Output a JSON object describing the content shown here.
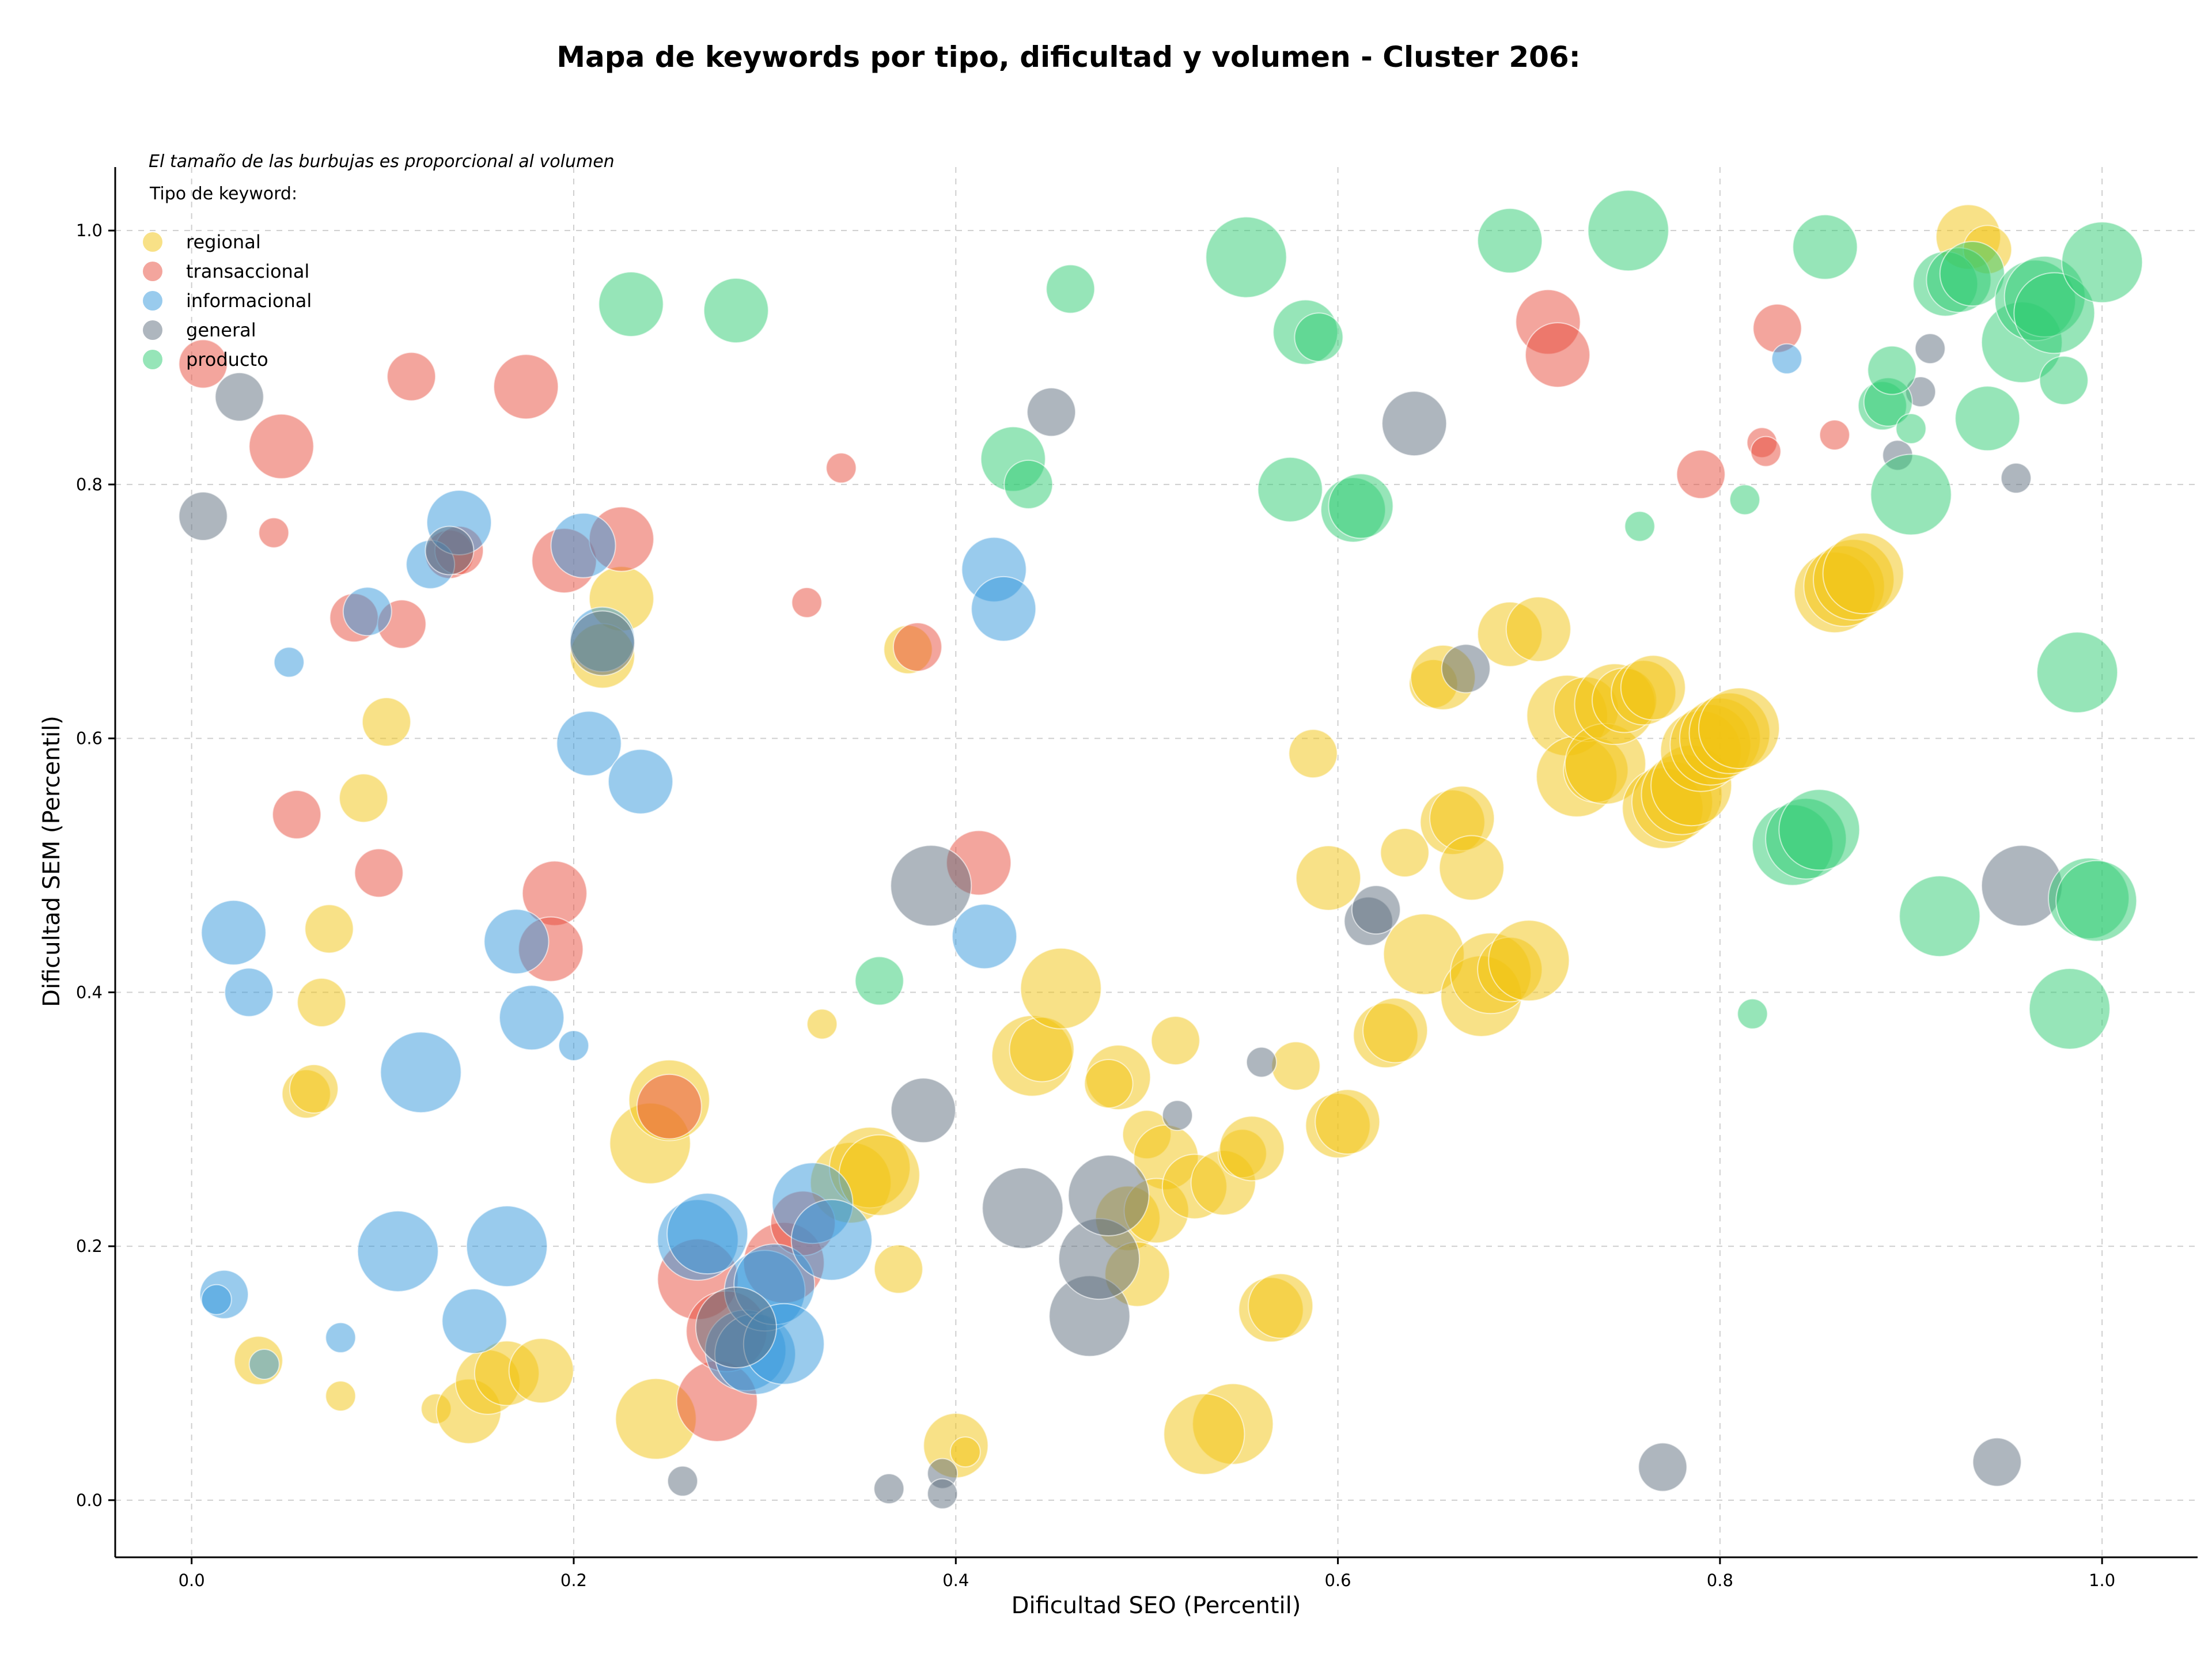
{
  "chart_data": {
    "type": "scatter",
    "title": "Mapa de keywords por tipo, dificultad y volumen - Cluster 206:",
    "xlabel": "Dificultad SEO (Percentil)",
    "ylabel": "Dificultad SEM (Percentil)",
    "xlim": [
      -0.04,
      1.05
    ],
    "ylim": [
      -0.045,
      1.05
    ],
    "xticks": [
      "0.0",
      "0.2",
      "0.4",
      "0.6",
      "0.8",
      "1.0"
    ],
    "yticks": [
      "0.0",
      "0.2",
      "0.4",
      "0.6",
      "0.8",
      "1.0"
    ],
    "grid": true,
    "annotation": "El tamaño de las burbujas es proporcional al volumen",
    "legend_title": "Tipo de keyword:",
    "legend_position": "top-left",
    "point_format": "[x, y, size]",
    "series": [
      {
        "name": "regional",
        "color": "#f1c40f",
        "points": [
          [
            0.93,
            0.995,
            3
          ],
          [
            0.94,
            0.985,
            2
          ],
          [
            0.225,
            0.71,
            3
          ],
          [
            0.215,
            0.665,
            3
          ],
          [
            0.102,
            0.613,
            2
          ],
          [
            0.09,
            0.553,
            2
          ],
          [
            0.072,
            0.45,
            2
          ],
          [
            0.068,
            0.392,
            2
          ],
          [
            0.06,
            0.32,
            2
          ],
          [
            0.064,
            0.324,
            2
          ],
          [
            0.035,
            0.11,
            2
          ],
          [
            0.078,
            0.082,
            1
          ],
          [
            0.128,
            0.072,
            1
          ],
          [
            0.145,
            0.07,
            3
          ],
          [
            0.155,
            0.093,
            3
          ],
          [
            0.165,
            0.1,
            3
          ],
          [
            0.183,
            0.102,
            3
          ],
          [
            0.24,
            0.281,
            4
          ],
          [
            0.25,
            0.315,
            4
          ],
          [
            0.243,
            0.064,
            4
          ],
          [
            0.33,
            0.375,
            1
          ],
          [
            0.37,
            0.182,
            2
          ],
          [
            0.375,
            0.67,
            2
          ],
          [
            0.345,
            0.25,
            4
          ],
          [
            0.355,
            0.262,
            4
          ],
          [
            0.36,
            0.256,
            4
          ],
          [
            0.4,
            0.043,
            3
          ],
          [
            0.405,
            0.038,
            1
          ],
          [
            0.44,
            0.35,
            4
          ],
          [
            0.445,
            0.355,
            3
          ],
          [
            0.455,
            0.403,
            4
          ],
          [
            0.485,
            0.333,
            3
          ],
          [
            0.48,
            0.328,
            2
          ],
          [
            0.49,
            0.222,
            3
          ],
          [
            0.495,
            0.178,
            3
          ],
          [
            0.5,
            0.288,
            2
          ],
          [
            0.51,
            0.27,
            3
          ],
          [
            0.505,
            0.228,
            3
          ],
          [
            0.515,
            0.362,
            2
          ],
          [
            0.525,
            0.247,
            3
          ],
          [
            0.54,
            0.25,
            3
          ],
          [
            0.545,
            0.06,
            4
          ],
          [
            0.53,
            0.052,
            4
          ],
          [
            0.55,
            0.273,
            2
          ],
          [
            0.555,
            0.277,
            3
          ],
          [
            0.565,
            0.15,
            3
          ],
          [
            0.57,
            0.153,
            3
          ],
          [
            0.578,
            0.342,
            2
          ],
          [
            0.587,
            0.588,
            2
          ],
          [
            0.595,
            0.49,
            3
          ],
          [
            0.6,
            0.295,
            3
          ],
          [
            0.605,
            0.298,
            3
          ],
          [
            0.625,
            0.366,
            3
          ],
          [
            0.63,
            0.37,
            3
          ],
          [
            0.635,
            0.51,
            2
          ],
          [
            0.645,
            0.43,
            4
          ],
          [
            0.65,
            0.643,
            2
          ],
          [
            0.655,
            0.648,
            3
          ],
          [
            0.66,
            0.534,
            3
          ],
          [
            0.665,
            0.537,
            3
          ],
          [
            0.67,
            0.498,
            3
          ],
          [
            0.675,
            0.397,
            4
          ],
          [
            0.68,
            0.415,
            4
          ],
          [
            0.69,
            0.418,
            3
          ],
          [
            0.69,
            0.682,
            3
          ],
          [
            0.7,
            0.425,
            4
          ],
          [
            0.705,
            0.686,
            3
          ],
          [
            0.72,
            0.618,
            4
          ],
          [
            0.725,
            0.57,
            4
          ],
          [
            0.73,
            0.623,
            3
          ],
          [
            0.735,
            0.575,
            3
          ],
          [
            0.74,
            0.58,
            4
          ],
          [
            0.745,
            0.627,
            4
          ],
          [
            0.75,
            0.63,
            3
          ],
          [
            0.76,
            0.636,
            3
          ],
          [
            0.765,
            0.64,
            3
          ],
          [
            0.77,
            0.545,
            4
          ],
          [
            0.775,
            0.55,
            4
          ],
          [
            0.78,
            0.556,
            4
          ],
          [
            0.785,
            0.563,
            4
          ],
          [
            0.79,
            0.59,
            4
          ],
          [
            0.795,
            0.595,
            4
          ],
          [
            0.8,
            0.6,
            4
          ],
          [
            0.805,
            0.604,
            4
          ],
          [
            0.81,
            0.608,
            4
          ],
          [
            0.86,
            0.715,
            4
          ],
          [
            0.865,
            0.72,
            4
          ],
          [
            0.87,
            0.725,
            4
          ],
          [
            0.875,
            0.73,
            4
          ]
        ]
      },
      {
        "name": "transaccional",
        "color": "#e74c3c",
        "points": [
          [
            0.006,
            0.895,
            2
          ],
          [
            0.047,
            0.83,
            3
          ],
          [
            0.043,
            0.762,
            1
          ],
          [
            0.085,
            0.695,
            2
          ],
          [
            0.11,
            0.69,
            2
          ],
          [
            0.115,
            0.885,
            2
          ],
          [
            0.135,
            0.745,
            2
          ],
          [
            0.14,
            0.748,
            2
          ],
          [
            0.175,
            0.877,
            3
          ],
          [
            0.195,
            0.74,
            3
          ],
          [
            0.225,
            0.757,
            3
          ],
          [
            0.055,
            0.54,
            2
          ],
          [
            0.098,
            0.494,
            2
          ],
          [
            0.19,
            0.478,
            3
          ],
          [
            0.188,
            0.434,
            3
          ],
          [
            0.25,
            0.31,
            3
          ],
          [
            0.265,
            0.174,
            4
          ],
          [
            0.275,
            0.078,
            4
          ],
          [
            0.28,
            0.133,
            4
          ],
          [
            0.31,
            0.187,
            4
          ],
          [
            0.32,
            0.218,
            3
          ],
          [
            0.322,
            0.707,
            1
          ],
          [
            0.34,
            0.813,
            1
          ],
          [
            0.38,
            0.672,
            2
          ],
          [
            0.412,
            0.502,
            3
          ],
          [
            0.71,
            0.928,
            3
          ],
          [
            0.715,
            0.902,
            3
          ],
          [
            0.79,
            0.808,
            2
          ],
          [
            0.822,
            0.833,
            1
          ],
          [
            0.824,
            0.826,
            1
          ],
          [
            0.83,
            0.923,
            2
          ],
          [
            0.86,
            0.839,
            1
          ]
        ]
      },
      {
        "name": "informacional",
        "color": "#3498db",
        "points": [
          [
            0.051,
            0.66,
            1
          ],
          [
            0.092,
            0.7,
            2
          ],
          [
            0.022,
            0.447,
            3
          ],
          [
            0.03,
            0.4,
            2
          ],
          [
            0.017,
            0.162,
            2
          ],
          [
            0.013,
            0.158,
            1
          ],
          [
            0.038,
            0.107,
            1
          ],
          [
            0.078,
            0.128,
            1
          ],
          [
            0.108,
            0.196,
            4
          ],
          [
            0.12,
            0.337,
            4
          ],
          [
            0.125,
            0.737,
            2
          ],
          [
            0.14,
            0.77,
            3
          ],
          [
            0.148,
            0.141,
            3
          ],
          [
            0.165,
            0.2,
            4
          ],
          [
            0.17,
            0.44,
            3
          ],
          [
            0.178,
            0.38,
            3
          ],
          [
            0.2,
            0.358,
            1
          ],
          [
            0.205,
            0.752,
            3
          ],
          [
            0.208,
            0.596,
            3
          ],
          [
            0.215,
            0.678,
            3
          ],
          [
            0.235,
            0.566,
            3
          ],
          [
            0.265,
            0.205,
            4
          ],
          [
            0.27,
            0.21,
            4
          ],
          [
            0.29,
            0.118,
            4
          ],
          [
            0.295,
            0.115,
            4
          ],
          [
            0.3,
            0.165,
            4
          ],
          [
            0.305,
            0.17,
            4
          ],
          [
            0.31,
            0.123,
            4
          ],
          [
            0.325,
            0.234,
            4
          ],
          [
            0.335,
            0.205,
            4
          ],
          [
            0.415,
            0.444,
            3
          ],
          [
            0.42,
            0.733,
            3
          ],
          [
            0.425,
            0.702,
            3
          ],
          [
            0.835,
            0.899,
            1
          ]
        ]
      },
      {
        "name": "general",
        "color": "#5d6d7e",
        "points": [
          [
            0.025,
            0.869,
            2
          ],
          [
            0.006,
            0.775,
            2
          ],
          [
            0.135,
            0.748,
            2
          ],
          [
            0.215,
            0.675,
            3
          ],
          [
            0.257,
            0.015,
            1
          ],
          [
            0.285,
            0.136,
            4
          ],
          [
            0.365,
            0.009,
            1
          ],
          [
            0.383,
            0.307,
            3
          ],
          [
            0.387,
            0.484,
            4
          ],
          [
            0.393,
            0.021,
            1
          ],
          [
            0.393,
            0.005,
            1
          ],
          [
            0.435,
            0.23,
            4
          ],
          [
            0.45,
            0.857,
            2
          ],
          [
            0.47,
            0.145,
            4
          ],
          [
            0.475,
            0.19,
            4
          ],
          [
            0.48,
            0.24,
            4
          ],
          [
            0.516,
            0.303,
            1
          ],
          [
            0.56,
            0.345,
            1
          ],
          [
            0.616,
            0.456,
            2
          ],
          [
            0.62,
            0.465,
            2
          ],
          [
            0.64,
            0.848,
            3
          ],
          [
            0.667,
            0.655,
            2
          ],
          [
            0.77,
            0.026,
            2
          ],
          [
            0.893,
            0.823,
            1
          ],
          [
            0.905,
            0.873,
            1
          ],
          [
            0.91,
            0.907,
            1
          ],
          [
            0.945,
            0.03,
            2
          ],
          [
            0.955,
            0.805,
            1
          ],
          [
            0.958,
            0.484,
            4
          ]
        ]
      },
      {
        "name": "producto",
        "color": "#2ecc71",
        "points": [
          [
            0.23,
            0.942,
            3
          ],
          [
            0.285,
            0.937,
            3
          ],
          [
            0.36,
            0.409,
            2
          ],
          [
            0.43,
            0.82,
            3
          ],
          [
            0.438,
            0.8,
            2
          ],
          [
            0.46,
            0.954,
            2
          ],
          [
            0.552,
            0.979,
            4
          ],
          [
            0.575,
            0.796,
            3
          ],
          [
            0.583,
            0.92,
            3
          ],
          [
            0.59,
            0.916,
            2
          ],
          [
            0.608,
            0.78,
            3
          ],
          [
            0.612,
            0.783,
            3
          ],
          [
            0.69,
            0.992,
            3
          ],
          [
            0.752,
            1.0,
            4
          ],
          [
            0.758,
            0.767,
            1
          ],
          [
            0.813,
            0.788,
            1
          ],
          [
            0.817,
            0.383,
            1
          ],
          [
            0.838,
            0.516,
            4
          ],
          [
            0.845,
            0.521,
            4
          ],
          [
            0.852,
            0.528,
            4
          ],
          [
            0.855,
            0.987,
            3
          ],
          [
            0.885,
            0.862,
            2
          ],
          [
            0.888,
            0.865,
            2
          ],
          [
            0.89,
            0.89,
            2
          ],
          [
            0.9,
            0.844,
            1
          ],
          [
            0.9,
            0.792,
            4
          ],
          [
            0.915,
            0.46,
            4
          ],
          [
            0.918,
            0.958,
            3
          ],
          [
            0.925,
            0.961,
            3
          ],
          [
            0.932,
            0.966,
            3
          ],
          [
            0.94,
            0.852,
            3
          ],
          [
            0.958,
            0.912,
            4
          ],
          [
            0.965,
            0.945,
            4
          ],
          [
            0.97,
            0.948,
            4
          ],
          [
            0.975,
            0.935,
            4
          ],
          [
            0.98,
            0.882,
            2
          ],
          [
            0.983,
            0.387,
            4
          ],
          [
            0.987,
            0.652,
            4
          ],
          [
            0.993,
            0.474,
            4
          ],
          [
            0.997,
            0.472,
            4
          ],
          [
            1.0,
            0.975,
            4
          ]
        ]
      }
    ]
  }
}
